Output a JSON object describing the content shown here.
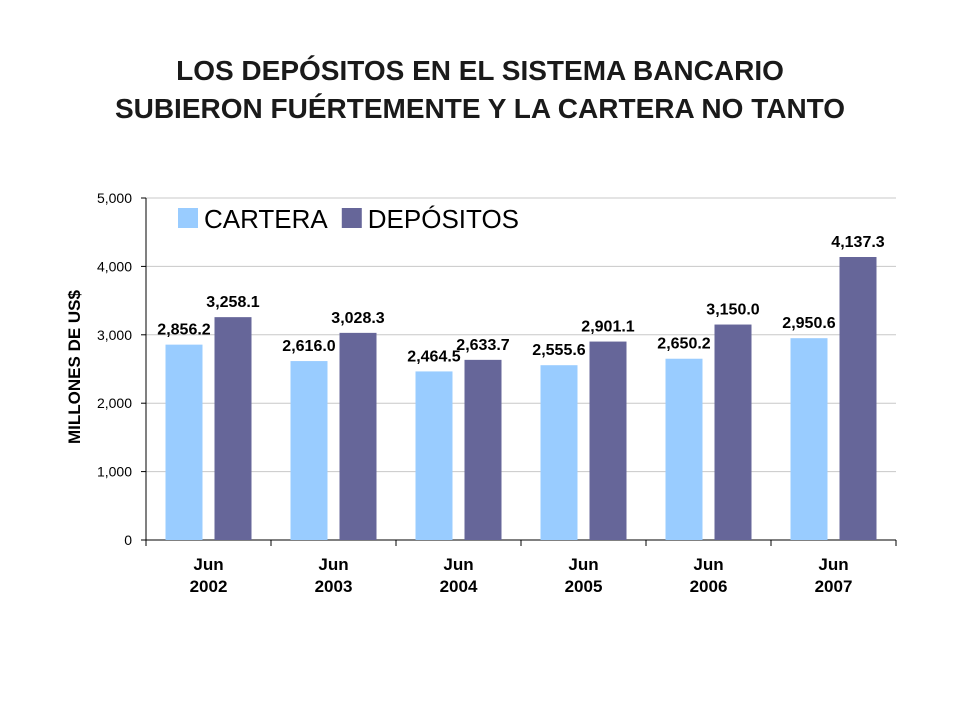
{
  "slide": {
    "title_line1": "LOS DEPÓSITOS EN EL SISTEMA BANCARIO",
    "title_line2": "SUBIERON FUÉRTEMENTE Y LA CARTERA NO TANTO"
  },
  "chart_data": {
    "type": "bar",
    "categories": [
      "Jun\n2002",
      "Jun\n2003",
      "Jun\n2004",
      "Jun\n2005",
      "Jun\n2006",
      "Jun\n2007"
    ],
    "series": [
      {
        "name": "CARTERA",
        "color": "#99ccff",
        "values": [
          2856.2,
          2616.0,
          2464.5,
          2555.6,
          2650.2,
          2950.6
        ],
        "labels": [
          "2,856.2",
          "2,616.0",
          "2,464.5",
          "2,555.6",
          "2,650.2",
          "2,950.6"
        ]
      },
      {
        "name": "DEPÓSITOS",
        "color": "#666699",
        "values": [
          3258.1,
          3028.3,
          2633.7,
          2901.1,
          3150.0,
          4137.3
        ],
        "labels": [
          "3,258.1",
          "3,028.3",
          "2,633.7",
          "2,901.1",
          "3,150.0",
          "4,137.3"
        ]
      }
    ],
    "ylabel": "MILLONES DE US$",
    "xlabel": "",
    "ylim": [
      0,
      5000
    ],
    "yticks": [
      0,
      1000,
      2000,
      3000,
      4000,
      5000
    ],
    "ytick_labels": [
      "0",
      "1,000",
      "2,000",
      "3,000",
      "4,000",
      "5,000"
    ],
    "grid": true,
    "legend": "top-left"
  }
}
